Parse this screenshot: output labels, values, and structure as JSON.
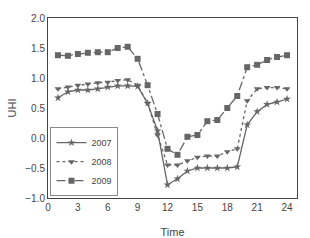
{
  "chart_data": {
    "type": "line",
    "xlabel": "Time",
    "ylabel": "UHI",
    "x": [
      1,
      2,
      3,
      4,
      5,
      6,
      7,
      8,
      9,
      10,
      11,
      12,
      13,
      14,
      15,
      16,
      17,
      18,
      19,
      20,
      21,
      22,
      23,
      24
    ],
    "series": [
      {
        "name": "2007",
        "color": "#666666",
        "line_style": "solid",
        "marker": "star",
        "values": [
          0.67,
          0.77,
          0.8,
          0.8,
          0.82,
          0.85,
          0.87,
          0.87,
          0.86,
          0.58,
          0.12,
          -0.78,
          -0.68,
          -0.55,
          -0.5,
          -0.5,
          -0.5,
          -0.5,
          -0.48,
          0.22,
          0.44,
          0.56,
          0.6,
          0.65
        ]
      },
      {
        "name": "2008",
        "color": "#666666",
        "line_style": "dot",
        "marker": "triangle-down",
        "values": [
          0.82,
          0.85,
          0.88,
          0.9,
          0.92,
          0.93,
          0.96,
          0.97,
          0.88,
          0.58,
          0.05,
          -0.45,
          -0.45,
          -0.38,
          -0.32,
          -0.3,
          -0.3,
          -0.23,
          -0.18,
          0.62,
          0.82,
          0.84,
          0.84,
          0.82
        ]
      },
      {
        "name": "2009",
        "color": "#666666",
        "line_style": "dashdot",
        "marker": "square",
        "values": [
          1.38,
          1.37,
          1.4,
          1.42,
          1.43,
          1.43,
          1.5,
          1.52,
          1.32,
          0.88,
          0.4,
          -0.18,
          -0.28,
          0.02,
          0.05,
          0.28,
          0.3,
          0.5,
          0.7,
          1.18,
          1.22,
          1.3,
          1.35,
          1.38
        ]
      }
    ],
    "xlim": [
      0,
      25
    ],
    "xticks": [
      0,
      3,
      6,
      9,
      12,
      15,
      18,
      21,
      24
    ],
    "ylim": [
      -1.0,
      2.0
    ],
    "yticks": [
      {
        "value": -1.0,
        "label": "−1.0"
      },
      {
        "value": -0.5,
        "label": "−0.5"
      },
      {
        "value": 0.0,
        "label": "0.0"
      },
      0.5,
      {
        "value": 1.0,
        "label": "1.0"
      },
      1.5,
      {
        "value": 2.0,
        "label": "2.0"
      }
    ],
    "grid": false,
    "legend": "lower left"
  }
}
